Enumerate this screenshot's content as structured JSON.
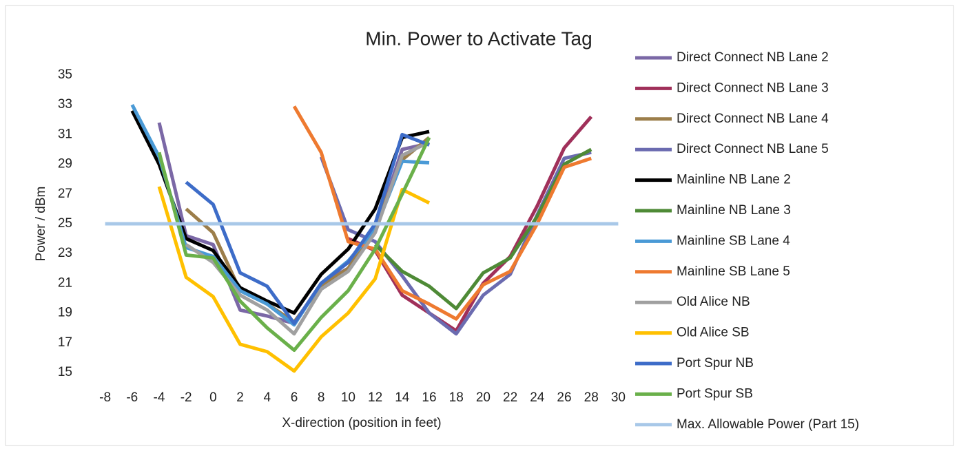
{
  "chart_data": {
    "type": "line",
    "title": "Min. Power to Activate Tag",
    "x_label": "X-direction (position in feet)",
    "y_label": "Power / dBm",
    "x": [
      -8,
      -6,
      -4,
      -2,
      0,
      2,
      4,
      6,
      8,
      10,
      12,
      14,
      16,
      18,
      20,
      22,
      24,
      26,
      28,
      30
    ],
    "xlim": [
      -9,
      31
    ],
    "xticks": [
      -8,
      -6,
      -4,
      -2,
      0,
      2,
      4,
      6,
      8,
      10,
      12,
      14,
      16,
      18,
      20,
      22,
      24,
      26,
      28,
      30
    ],
    "ylim": [
      15,
      35
    ],
    "yticks": [
      15,
      17,
      19,
      21,
      23,
      25,
      27,
      29,
      31,
      33,
      35
    ],
    "grid": false,
    "legend": "right",
    "series": [
      {
        "name": "Direct Connect NB Lane 2",
        "color": "#7b68a6",
        "values": [
          null,
          null,
          31.8,
          24.2,
          23.6,
          19.2,
          18.8,
          18.3,
          21,
          22,
          24.5,
          30,
          30.4,
          null,
          null,
          null,
          null,
          null,
          null,
          null
        ]
      },
      {
        "name": "Direct Connect NB Lane 3",
        "color": "#a0305a",
        "values": [
          null,
          null,
          null,
          null,
          null,
          null,
          null,
          null,
          null,
          24,
          23.2,
          20.2,
          19,
          17.8,
          21,
          22.8,
          26.2,
          30.1,
          32.2,
          null
        ]
      },
      {
        "name": "Direct Connect NB Lane 4",
        "color": "#9c7e4a",
        "values": [
          null,
          null,
          null,
          26,
          24.4,
          20.5,
          19.6,
          18.4,
          20.8,
          22,
          24.8,
          29.3,
          30.8,
          null,
          null,
          null,
          null,
          null,
          null,
          null
        ]
      },
      {
        "name": "Direct Connect NB Lane 5",
        "color": "#6b6bb0",
        "values": [
          null,
          null,
          null,
          null,
          null,
          null,
          null,
          null,
          29.5,
          24.6,
          23.8,
          21.5,
          19,
          17.6,
          20.2,
          21.6,
          25.6,
          29.4,
          29.8,
          null
        ]
      },
      {
        "name": "Mainline NB Lane 2",
        "color": "#000000",
        "values": [
          null,
          32.6,
          29,
          24,
          23.2,
          20.7,
          19.8,
          19,
          21.6,
          23.3,
          26,
          30.8,
          31.2,
          null,
          null,
          null,
          null,
          null,
          null,
          null
        ]
      },
      {
        "name": "Mainline NB Lane 3",
        "color": "#4e8a36",
        "values": [
          null,
          null,
          null,
          null,
          null,
          null,
          null,
          null,
          null,
          null,
          23.6,
          21.8,
          20.8,
          19.3,
          21.7,
          22.7,
          25.5,
          29,
          30,
          null
        ]
      },
      {
        "name": "Mainline SB Lane 4",
        "color": "#4a9ad6",
        "values": [
          null,
          33,
          29.5,
          23.4,
          22.8,
          20.5,
          19.6,
          18.2,
          21,
          22.5,
          24.6,
          29.2,
          29.1,
          null,
          null,
          null,
          null,
          null,
          null,
          null
        ]
      },
      {
        "name": "Mainline SB Lane 5",
        "color": "#ee7a30",
        "values": [
          null,
          null,
          null,
          null,
          null,
          null,
          null,
          32.9,
          29.8,
          23.8,
          23.3,
          20.5,
          19.6,
          18.6,
          20.9,
          21.8,
          25,
          28.8,
          29.4,
          null
        ]
      },
      {
        "name": "Old Alice NB",
        "color": "#a0a0a0",
        "values": [
          null,
          null,
          null,
          23.6,
          22.4,
          20.2,
          19.2,
          17.6,
          20.6,
          21.8,
          24.4,
          29.6,
          30.5,
          null,
          null,
          null,
          null,
          null,
          null,
          null
        ]
      },
      {
        "name": "Old Alice SB",
        "color": "#ffc000",
        "values": [
          null,
          null,
          27.5,
          21.4,
          20.1,
          16.9,
          16.4,
          15.1,
          17.4,
          19,
          21.3,
          27.3,
          26.4,
          null,
          null,
          null,
          null,
          null,
          null,
          null
        ]
      },
      {
        "name": "Port Spur NB",
        "color": "#3d6cc8",
        "values": [
          null,
          null,
          null,
          27.8,
          26.3,
          21.7,
          20.8,
          18.3,
          21,
          22.4,
          25,
          31,
          30.3,
          null,
          null,
          null,
          null,
          null,
          null,
          null
        ]
      },
      {
        "name": "Port Spur SB",
        "color": "#6ab04a",
        "values": [
          null,
          null,
          29.8,
          22.9,
          22.7,
          19.8,
          18,
          16.5,
          18.7,
          20.5,
          23.3,
          27,
          30.8,
          null,
          null,
          null,
          null,
          null,
          null,
          null
        ]
      },
      {
        "name": "Max. Allowable Power (Part 15)",
        "color": "#a8c8e8",
        "values": [
          25,
          25,
          25,
          25,
          25,
          25,
          25,
          25,
          25,
          25,
          25,
          25,
          25,
          25,
          25,
          25,
          25,
          25,
          25,
          25
        ]
      }
    ]
  }
}
